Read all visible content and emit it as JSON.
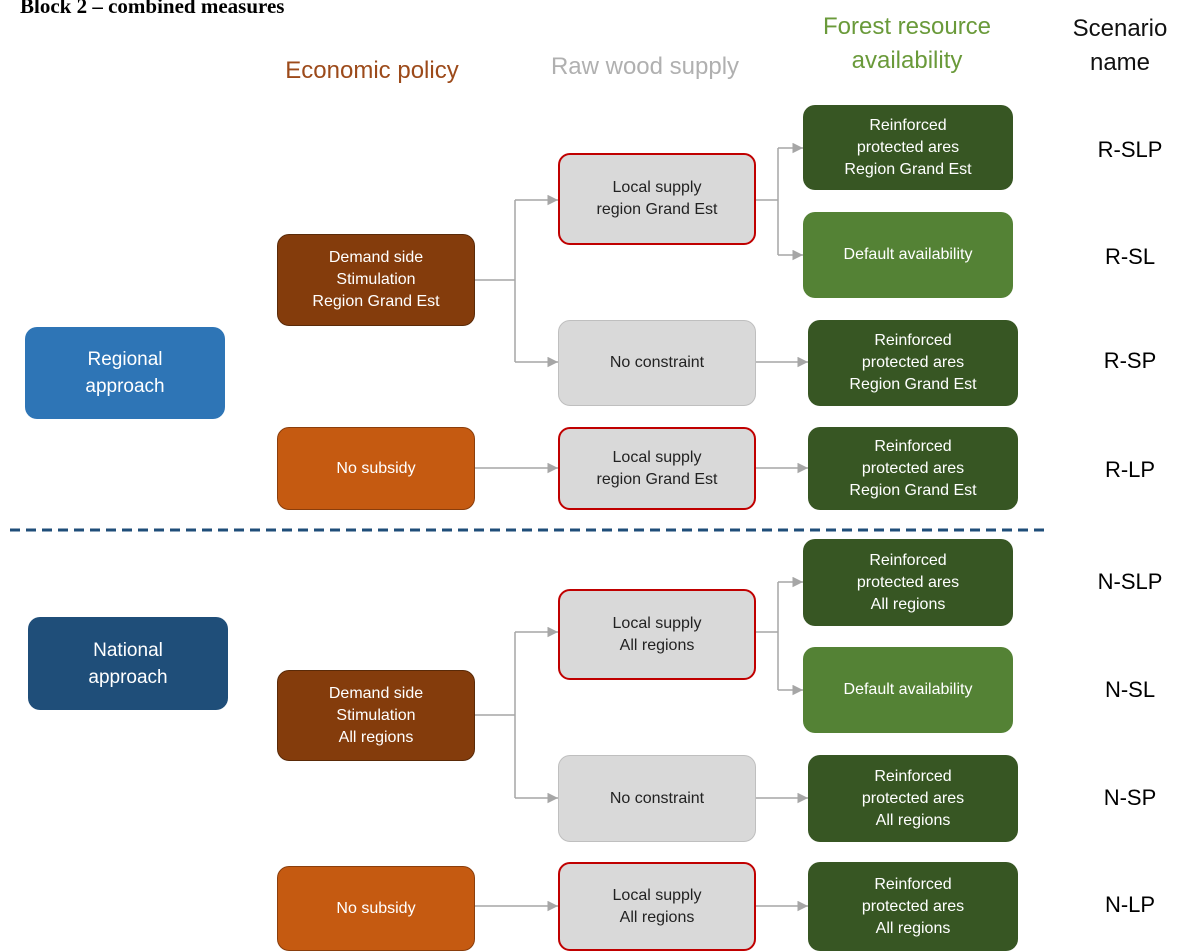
{
  "title": "Block 2 – combined measures",
  "headers": [
    {
      "lines": [
        "Economic policy"
      ]
    },
    {
      "lines": [
        "Raw wood supply"
      ]
    },
    {
      "lines": [
        "Forest resource",
        "availability"
      ]
    },
    {
      "lines": [
        "Scenario",
        "name"
      ]
    }
  ],
  "nodes": [
    {
      "lines": [
        "Regional",
        "approach"
      ]
    },
    {
      "lines": [
        "National",
        "approach"
      ]
    },
    {
      "lines": [
        "Demand side",
        "Stimulation",
        "Region Grand Est"
      ]
    },
    {
      "lines": [
        "No subsidy"
      ]
    },
    {
      "lines": [
        "Demand side",
        "Stimulation",
        "All regions"
      ]
    },
    {
      "lines": [
        "No subsidy"
      ]
    },
    {
      "lines": [
        "Local supply",
        "region Grand Est"
      ]
    },
    {
      "lines": [
        "No constraint"
      ]
    },
    {
      "lines": [
        "Local supply",
        "region Grand Est"
      ]
    },
    {
      "lines": [
        "Local supply",
        "All regions"
      ]
    },
    {
      "lines": [
        "No constraint"
      ]
    },
    {
      "lines": [
        "Local supply",
        "All regions"
      ]
    },
    {
      "lines": [
        "Reinforced",
        "protected ares",
        "Region Grand Est"
      ]
    },
    {
      "lines": [
        "Default availability"
      ]
    },
    {
      "lines": [
        "Reinforced",
        "protected ares",
        "Region Grand Est"
      ]
    },
    {
      "lines": [
        "Reinforced",
        "protected ares",
        "Region Grand Est"
      ]
    },
    {
      "lines": [
        "Reinforced",
        "protected ares",
        "All regions"
      ]
    },
    {
      "lines": [
        "Default availability"
      ]
    },
    {
      "lines": [
        "Reinforced",
        "protected ares",
        "All regions"
      ]
    },
    {
      "lines": [
        "Reinforced",
        "protected ares",
        "All regions"
      ]
    }
  ],
  "scenarios": [
    "R-SLP",
    "R-SL",
    "R-SP",
    "R-LP",
    "N-SLP",
    "N-SL",
    "N-SP",
    "N-LP"
  ]
}
